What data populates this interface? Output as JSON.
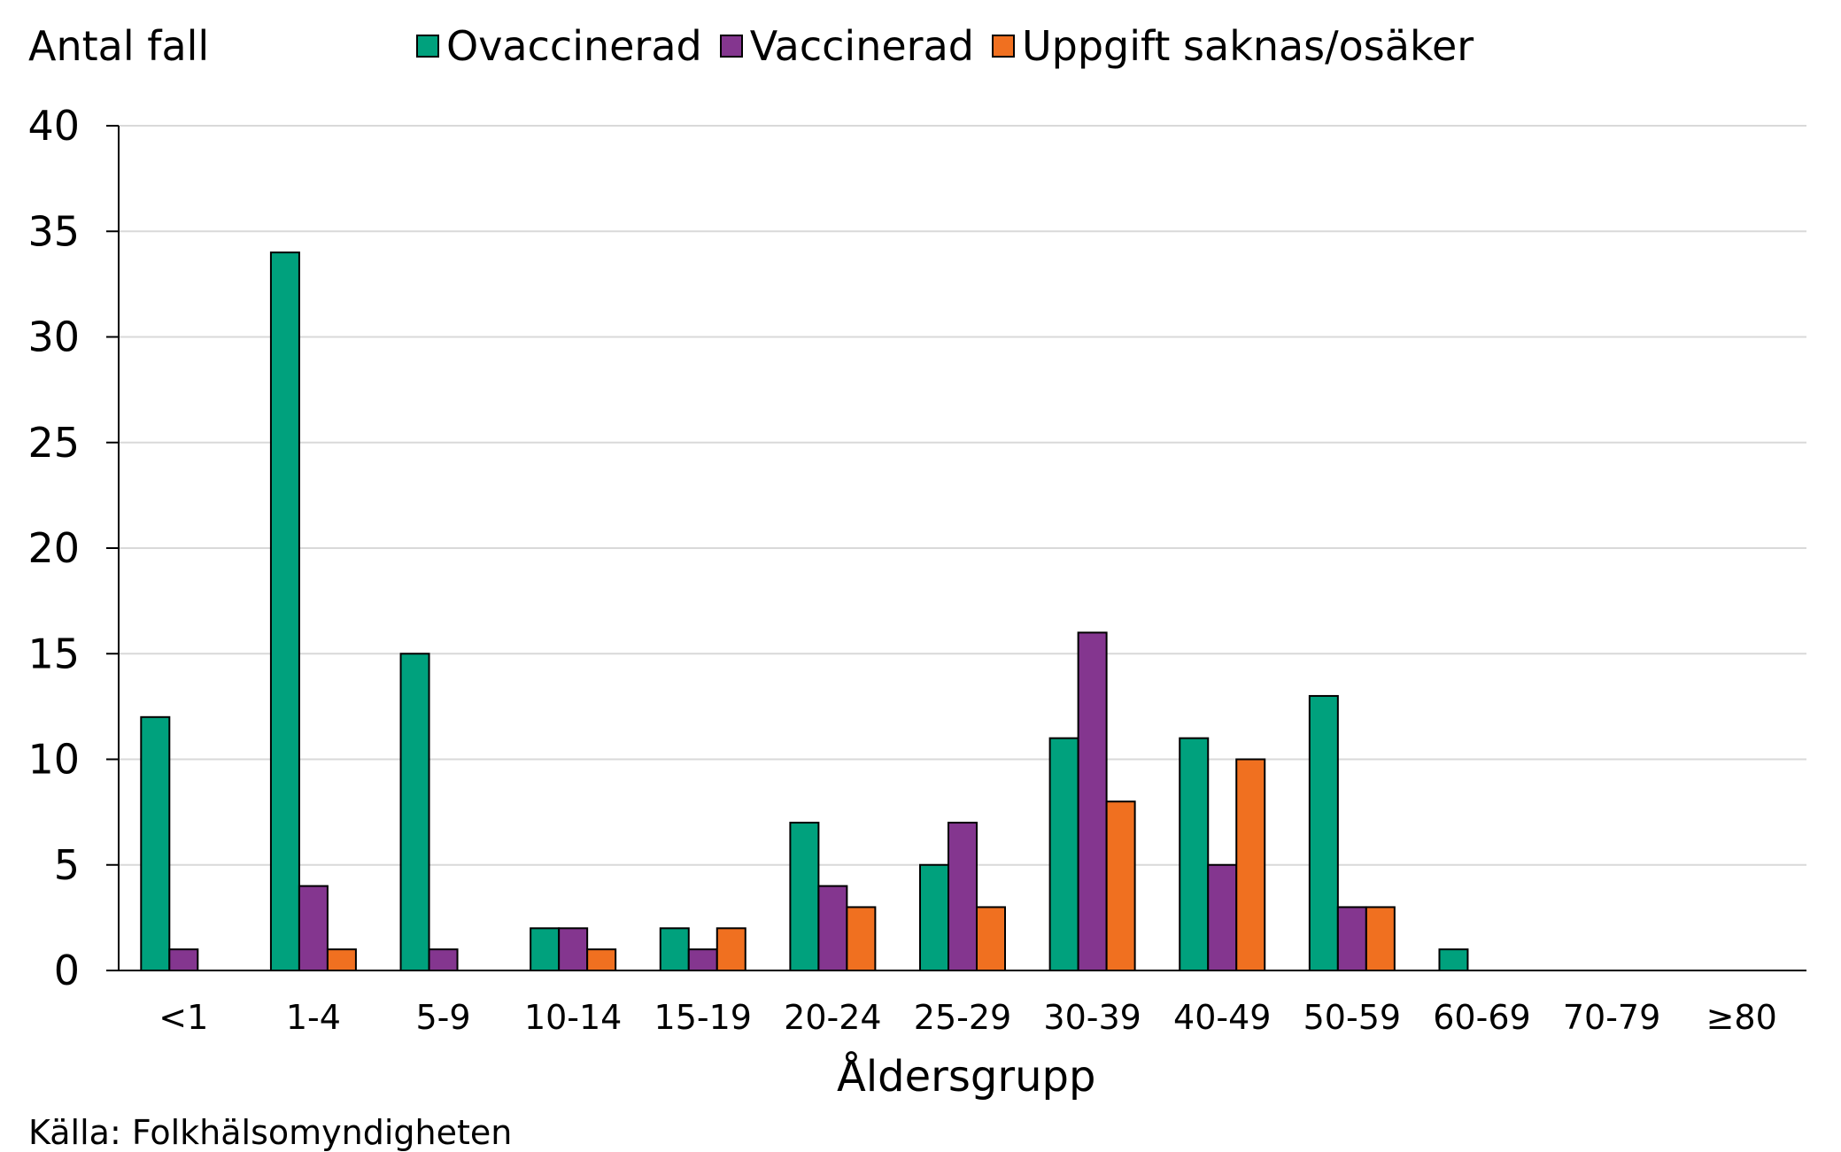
{
  "chart_data": {
    "type": "bar",
    "ylabel": "Antal fall",
    "xlabel": "Åldersgrupp",
    "categories": [
      "<1",
      "1-4",
      "5-9",
      "10-14",
      "15-19",
      "20-24",
      "25-29",
      "30-39",
      "40-49",
      "50-59",
      "60-69",
      "70-79",
      "≥80"
    ],
    "series": [
      {
        "name": "Ovaccinerad",
        "color": "#00a17d",
        "values": [
          12,
          34,
          15,
          2,
          2,
          7,
          5,
          11,
          11,
          13,
          1,
          0,
          0
        ]
      },
      {
        "name": "Vaccinerad",
        "color": "#84368f",
        "values": [
          1,
          4,
          1,
          2,
          1,
          4,
          7,
          16,
          5,
          3,
          0,
          0,
          0
        ]
      },
      {
        "name": "Uppgift saknas/osäker",
        "color": "#f07020",
        "values": [
          0,
          1,
          0,
          1,
          2,
          3,
          3,
          8,
          10,
          3,
          0,
          0,
          0
        ]
      }
    ],
    "ylim": [
      0,
      40
    ],
    "yticks": [
      0,
      5,
      10,
      15,
      20,
      25,
      30,
      35,
      40
    ],
    "grid": true,
    "legend_position": "top"
  },
  "source": "Källa: Folkhälsomyndigheten"
}
